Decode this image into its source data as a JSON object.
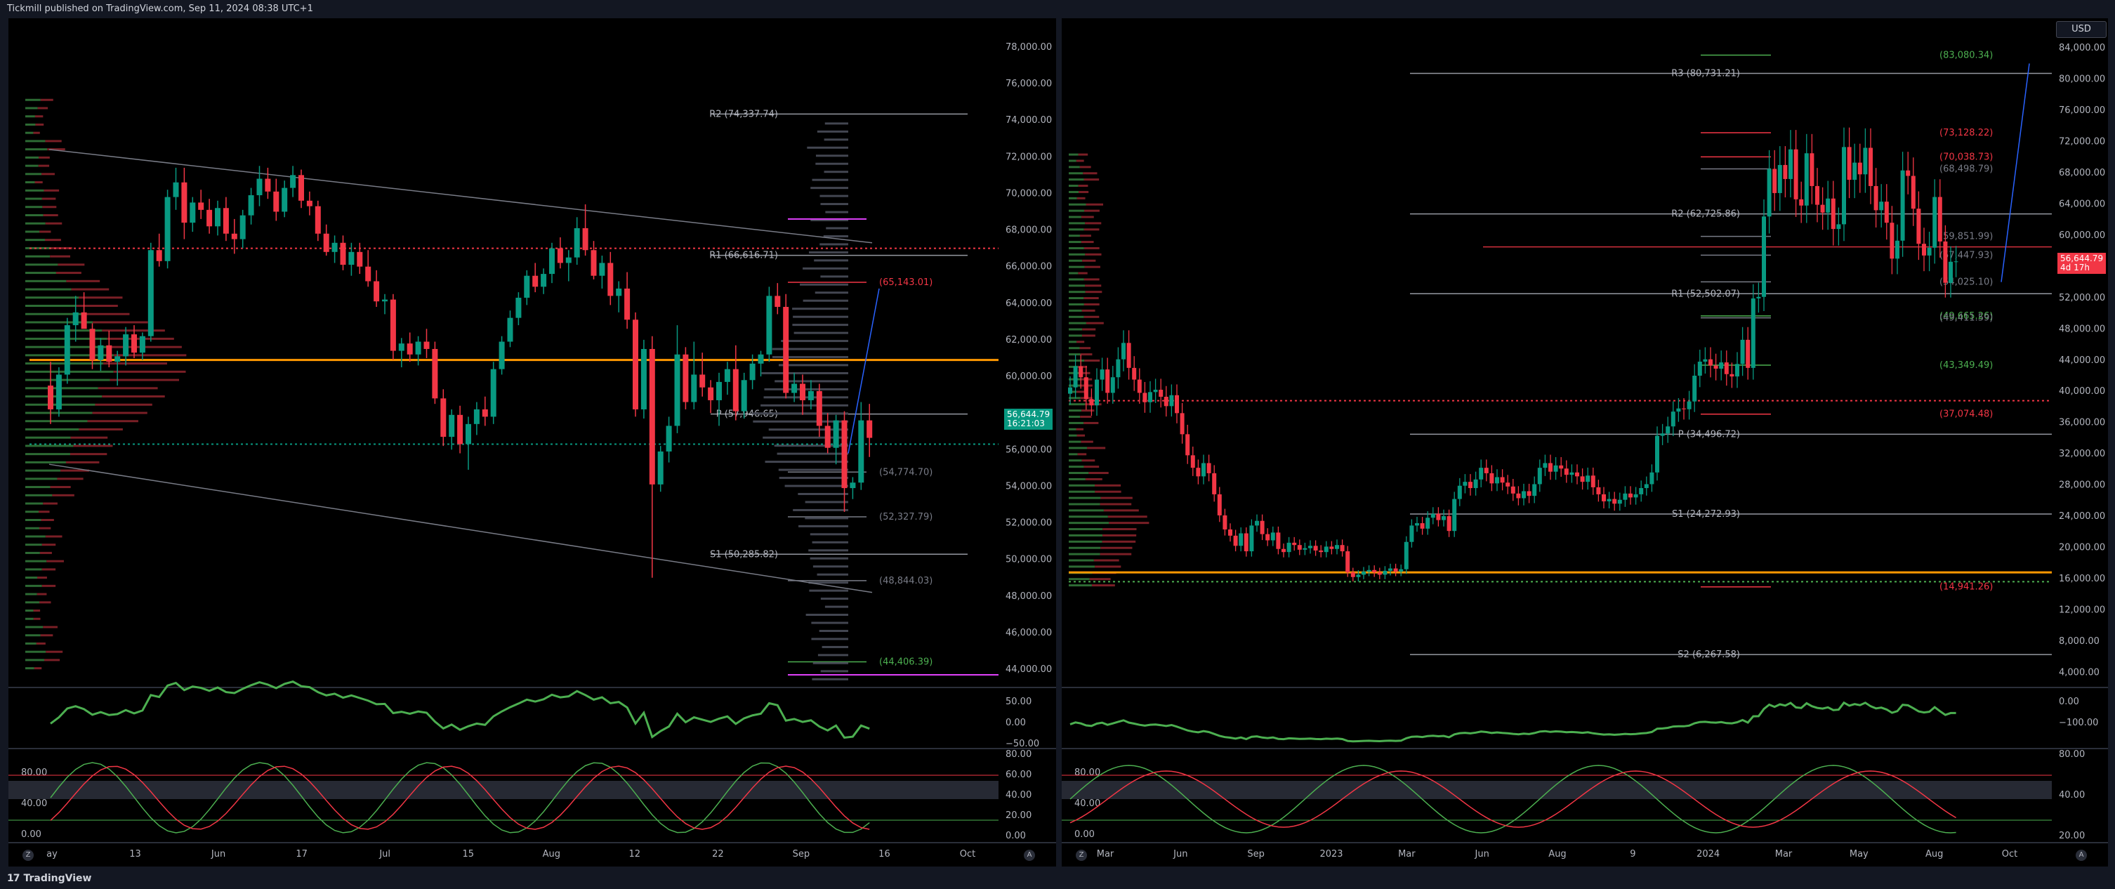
{
  "header": {
    "publisher_text": "Tickmill published on TradingView.com, Sep 11, 2024 08:38 UTC+1"
  },
  "footer": {
    "brand": "TradingView",
    "brand_mark": "17"
  },
  "colors": {
    "up": "#089981",
    "down": "#f23645",
    "pivot_line": "#9598a1",
    "orange": "#ff9800",
    "purple": "#e040fb",
    "green_level": "#4caf50",
    "red_level": "#f23645",
    "blue": "#2962ff"
  },
  "chart_data": [
    {
      "type": "candlestick",
      "timeframe": "daily",
      "y_axis": {
        "ticks": [
          "78,000.00",
          "76,000.00",
          "74,000.00",
          "72,000.00",
          "70,000.00",
          "68,000.00",
          "66,000.00",
          "64,000.00",
          "62,000.00",
          "60,000.00",
          "58,000.00",
          "56,000.00",
          "54,000.00",
          "52,000.00",
          "50,000.00",
          "48,000.00",
          "46,000.00",
          "44,000.00"
        ],
        "ylim": [
          43200,
          78800
        ]
      },
      "x_axis": {
        "ticks": [
          "ay",
          "13",
          "Jun",
          "17",
          "Jul",
          "15",
          "Aug",
          "12",
          "22",
          "Sep",
          "16",
          "Oct"
        ]
      },
      "last_price": {
        "value": "56,644.79",
        "countdown": "16:21:03"
      },
      "pivots": [
        {
          "label": "R2 (74,337.74)",
          "value": 74337.74
        },
        {
          "label": "R1 (66,616.71)",
          "value": 66616.71
        },
        {
          "label": "P (57,946.65)",
          "value": 57946.65
        },
        {
          "label": "S1 (50,285.82)",
          "value": 50285.82
        }
      ],
      "levels": [
        {
          "label": "(65,143.01)",
          "value": 65143.01,
          "color": "red"
        },
        {
          "label": "(54,774.70)",
          "value": 54774.7,
          "color": "gray"
        },
        {
          "label": "(52,327.79)",
          "value": 52327.79,
          "color": "gray"
        },
        {
          "label": "(48,844.03)",
          "value": 48844.03,
          "color": "gray"
        },
        {
          "label": "(44,406.39)",
          "value": 44406.39,
          "color": "green"
        }
      ],
      "candles": [
        [
          59500,
          60800,
          57400,
          58200
        ],
        [
          58200,
          60500,
          57800,
          60100
        ],
        [
          60100,
          63200,
          59600,
          62800
        ],
        [
          62800,
          64400,
          61900,
          63500
        ],
        [
          63500,
          64600,
          62700,
          62600
        ],
        [
          62600,
          62900,
          60400,
          60900
        ],
        [
          60900,
          62100,
          60300,
          61700
        ],
        [
          61700,
          62500,
          60500,
          60800
        ],
        [
          60800,
          61400,
          59500,
          61100
        ],
        [
          61100,
          62700,
          60600,
          62300
        ],
        [
          62300,
          62800,
          61000,
          61300
        ],
        [
          61300,
          62400,
          60900,
          62200
        ],
        [
          62200,
          67300,
          61900,
          66900
        ],
        [
          66900,
          67800,
          66000,
          66300
        ],
        [
          66300,
          70200,
          65900,
          69800
        ],
        [
          69800,
          71400,
          69100,
          70600
        ],
        [
          70600,
          71400,
          67500,
          68400
        ],
        [
          68400,
          69800,
          67900,
          69500
        ],
        [
          69500,
          70200,
          68600,
          69100
        ],
        [
          69100,
          69700,
          67800,
          68200
        ],
        [
          68200,
          69600,
          67700,
          69200
        ],
        [
          69200,
          69800,
          67400,
          67800
        ],
        [
          67800,
          68600,
          66700,
          67500
        ],
        [
          67500,
          69100,
          67000,
          68800
        ],
        [
          68800,
          70300,
          68300,
          69900
        ],
        [
          69900,
          71500,
          69300,
          70800
        ],
        [
          70800,
          71400,
          69700,
          70100
        ],
        [
          70100,
          70800,
          68500,
          69000
        ],
        [
          69000,
          70700,
          68700,
          70300
        ],
        [
          70300,
          71500,
          69800,
          71000
        ],
        [
          71000,
          71300,
          69200,
          69600
        ],
        [
          69600,
          70100,
          68800,
          69300
        ],
        [
          69300,
          69600,
          67400,
          67800
        ],
        [
          67800,
          68300,
          66600,
          66800
        ],
        [
          66800,
          67700,
          66200,
          67300
        ],
        [
          67300,
          67700,
          65800,
          66100
        ],
        [
          66100,
          67300,
          65500,
          66800
        ],
        [
          66800,
          67300,
          65600,
          66000
        ],
        [
          66000,
          66900,
          64900,
          65200
        ],
        [
          65200,
          65800,
          63800,
          64100
        ],
        [
          64100,
          64500,
          63400,
          64200
        ],
        [
          64200,
          64500,
          60900,
          61400
        ],
        [
          61400,
          62100,
          60500,
          61800
        ],
        [
          61800,
          62400,
          60800,
          61200
        ],
        [
          61200,
          62200,
          60600,
          61900
        ],
        [
          61900,
          62600,
          61000,
          61500
        ],
        [
          61500,
          61900,
          58500,
          58800
        ],
        [
          58800,
          59300,
          56200,
          56700
        ],
        [
          56700,
          58200,
          56000,
          57900
        ],
        [
          57900,
          58400,
          55800,
          56300
        ],
        [
          56300,
          57800,
          54900,
          57400
        ],
        [
          57400,
          58600,
          56800,
          58200
        ],
        [
          58200,
          58900,
          57300,
          57800
        ],
        [
          57800,
          60800,
          57400,
          60400
        ],
        [
          60400,
          62200,
          60100,
          61900
        ],
        [
          61900,
          63600,
          61600,
          63200
        ],
        [
          63200,
          64600,
          62800,
          64300
        ],
        [
          64300,
          65800,
          63900,
          65500
        ],
        [
          65500,
          66200,
          64600,
          64900
        ],
        [
          64900,
          65900,
          64500,
          65600
        ],
        [
          65600,
          67300,
          65100,
          67000
        ],
        [
          67000,
          67600,
          65900,
          66200
        ],
        [
          66200,
          66900,
          65200,
          66500
        ],
        [
          66500,
          68700,
          66100,
          68100
        ],
        [
          68100,
          69400,
          66600,
          66900
        ],
        [
          66900,
          67400,
          65300,
          65500
        ],
        [
          65500,
          66600,
          64800,
          66200
        ],
        [
          66200,
          66800,
          63900,
          64400
        ],
        [
          64400,
          65200,
          63500,
          64800
        ],
        [
          64800,
          65700,
          62600,
          63100
        ],
        [
          63100,
          63500,
          57800,
          58200
        ],
        [
          58200,
          62000,
          57700,
          61500
        ],
        [
          61500,
          62200,
          49000,
          54100
        ],
        [
          54100,
          56200,
          53700,
          55900
        ],
        [
          55900,
          57800,
          55300,
          57300
        ],
        [
          57300,
          62800,
          56900,
          61200
        ],
        [
          61200,
          61600,
          58200,
          58600
        ],
        [
          58600,
          61900,
          58200,
          60100
        ],
        [
          60100,
          61300,
          58900,
          59400
        ],
        [
          59400,
          59800,
          58000,
          58700
        ],
        [
          58700,
          60200,
          57300,
          59700
        ],
        [
          59700,
          60800,
          59000,
          60400
        ],
        [
          60400,
          61700,
          57600,
          58100
        ],
        [
          58100,
          60200,
          57700,
          59800
        ],
        [
          59800,
          61200,
          59300,
          60700
        ],
        [
          60700,
          61400,
          60000,
          61200
        ],
        [
          61200,
          64900,
          60800,
          64400
        ],
        [
          64400,
          65100,
          63400,
          63800
        ],
        [
          63800,
          64500,
          58800,
          59100
        ],
        [
          59100,
          60200,
          58600,
          59600
        ],
        [
          59600,
          60100,
          57900,
          58700
        ],
        [
          58700,
          59800,
          58200,
          59200
        ],
        [
          59200,
          59600,
          56700,
          57300
        ],
        [
          57300,
          58000,
          55800,
          56100
        ],
        [
          56100,
          57900,
          55200,
          57600
        ],
        [
          57600,
          58100,
          52600,
          53900
        ],
        [
          53900,
          54500,
          53300,
          54200
        ],
        [
          54200,
          58600,
          53800,
          57600
        ],
        [
          57600,
          58500,
          55600,
          56644
        ]
      ],
      "indicator_panes": [
        {
          "ticks": [
            "50.00",
            "0.00",
            "−50.00"
          ]
        },
        {
          "ticks_left": [
            "80.00",
            "40.00",
            "0.00"
          ],
          "ticks_right": [
            "80.00",
            "60.00",
            "40.00",
            "20.00",
            "0.00"
          ]
        }
      ]
    },
    {
      "type": "candlestick",
      "timeframe": "weekly",
      "currency": "USD",
      "y_axis": {
        "ticks": [
          "84,000.00",
          "80,000.00",
          "76,000.00",
          "72,000.00",
          "68,000.00",
          "64,000.00",
          "60,000.00",
          "56,000.00",
          "52,000.00",
          "48,000.00",
          "44,000.00",
          "40,000.00",
          "36,000.00",
          "32,000.00",
          "28,000.00",
          "24,000.00",
          "20,000.00",
          "16,000.00",
          "12,000.00",
          "8,000.00",
          "4,000.00"
        ],
        "ylim": [
          2500,
          86000
        ]
      },
      "x_axis": {
        "ticks": [
          "Mar",
          "Jun",
          "Sep",
          "2023",
          "Mar",
          "Jun",
          "Aug",
          "9",
          "2024",
          "Mar",
          "May",
          "Aug",
          "Oct"
        ]
      },
      "last_price": {
        "value": "56,644.79",
        "countdown": "4d 17h"
      },
      "pivots": [
        {
          "label": "R3 (80,731.21)",
          "value": 80731.21
        },
        {
          "label": "R2 (62,725.86)",
          "value": 62725.86
        },
        {
          "label": "R1 (52,502.07)",
          "value": 52502.07
        },
        {
          "label": "P (34,496.72)",
          "value": 34496.72
        },
        {
          "label": "S1 (24,272.93)",
          "value": 24272.93
        },
        {
          "label": "S2 (6,267.58)",
          "value": 6267.58
        }
      ],
      "levels": [
        {
          "label": "(83,080.34)",
          "value": 83080.34,
          "color": "green"
        },
        {
          "label": "(73,128.22)",
          "value": 73128.22,
          "color": "red"
        },
        {
          "label": "(70,038.73)",
          "value": 70038.73,
          "color": "red"
        },
        {
          "label": "(68,498.79)",
          "value": 68498.79,
          "color": "gray"
        },
        {
          "label": "(59,851.99)",
          "value": 59851.99,
          "color": "gray"
        },
        {
          "label": "(57,447.93)",
          "value": 57447.93,
          "color": "gray"
        },
        {
          "label": "(54,025.10)",
          "value": 54025.1,
          "color": "gray"
        },
        {
          "label": "(49,665.26)",
          "value": 49665.26,
          "color": "green"
        },
        {
          "label": "(49,411.59)",
          "value": 49411.59,
          "color": "gray"
        },
        {
          "label": "(43,349.49)",
          "value": 43349.49,
          "color": "green"
        },
        {
          "label": "(37,074.48)",
          "value": 37074.48,
          "color": "red"
        },
        {
          "label": "(14,941.26)",
          "value": 14941.26,
          "color": "red"
        }
      ],
      "closes": [
        40500,
        43200,
        41800,
        39000,
        38200,
        41500,
        42800,
        39800,
        41800,
        44100,
        46200,
        43000,
        41500,
        39800,
        38600,
        39900,
        40200,
        39300,
        38100,
        39500,
        37200,
        34500,
        31800,
        30200,
        29100,
        30800,
        29500,
        26800,
        24100,
        22300,
        21500,
        20200,
        21800,
        19500,
        22800,
        23400,
        21700,
        20900,
        21900,
        19800,
        19400,
        20600,
        20300,
        19700,
        19900,
        20200,
        19600,
        19400,
        20100,
        19800,
        20300,
        19500,
        16800,
        16200,
        16500,
        16900,
        17100,
        16800,
        16500,
        17000,
        17300,
        16900,
        17200,
        20700,
        22800,
        23100,
        22400,
        23800,
        24300,
        23500,
        24000,
        22100,
        26200,
        27900,
        28400,
        27600,
        28700,
        30200,
        29500,
        28200,
        29000,
        28300,
        27800,
        26900,
        26300,
        27200,
        26600,
        28100,
        30200,
        30800,
        29700,
        30500,
        30100,
        29300,
        29600,
        29100,
        28400,
        29200,
        27700,
        26800,
        25900,
        26200,
        25600,
        26100,
        26900,
        26400,
        26800,
        27600,
        28100,
        29600,
        34300,
        34600,
        35500,
        37400,
        37800,
        37700,
        38700,
        42000,
        43800,
        44100,
        43300,
        42900,
        43700,
        42200,
        41900,
        43500,
        46600,
        43000,
        51900,
        52100,
        62400,
        68500,
        65400,
        69000,
        67200,
        71000,
        64600,
        63800,
        70500,
        66300,
        63900,
        62900,
        64700,
        60800,
        61400,
        71300,
        67100,
        69300,
        67800,
        71200,
        66300,
        63200,
        64300,
        61600,
        57000,
        59300,
        68300,
        67600,
        63400,
        58900,
        57400,
        58400,
        64900,
        59200,
        53900,
        56600,
        56644
      ],
      "indicator_panes": [
        {
          "ticks": [
            "0.00",
            "−100.00"
          ]
        },
        {
          "ticks_left": [
            "80.00",
            "40.00",
            "0.00"
          ],
          "ticks_right": [
            "80.00",
            "40.00",
            "20.00"
          ]
        }
      ]
    }
  ]
}
